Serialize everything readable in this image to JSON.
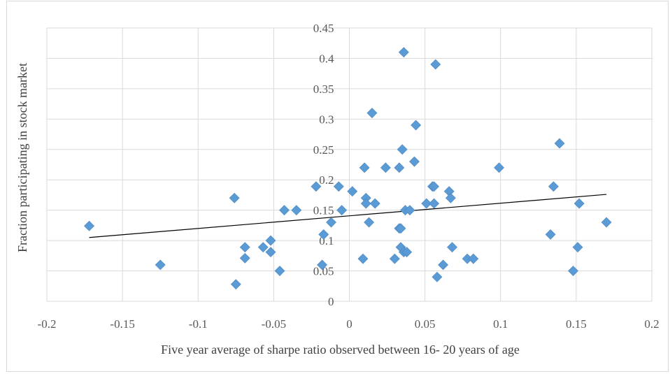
{
  "chart_data": {
    "type": "scatter",
    "title": "",
    "xlabel": "Five year average of sharpe ratio observed between 16- 20 years of age",
    "ylabel": "Fraction participating in stock market",
    "xlim": [
      -0.2,
      0.2
    ],
    "ylim": [
      0,
      0.45
    ],
    "x_ticks": [
      "-0.2",
      "-0.15",
      "-0.1",
      "-0.05",
      "0",
      "0.05",
      "0.1",
      "0.15",
      "0.2"
    ],
    "y_ticks": [
      "0",
      "0.05",
      "0.1",
      "0.15",
      "0.2",
      "0.25",
      "0.3",
      "0.35",
      "0.4",
      "0.45"
    ],
    "grid": "vertical and horizontal major gridlines",
    "marker_color": "#5B9BD5",
    "trendline_color": "#000000",
    "series": [
      {
        "marker": "diamond",
        "points": [
          [
            -0.172,
            0.124
          ],
          [
            -0.125,
            0.06
          ],
          [
            -0.076,
            0.17
          ],
          [
            -0.075,
            0.028
          ],
          [
            -0.069,
            0.089
          ],
          [
            -0.069,
            0.071
          ],
          [
            -0.057,
            0.089
          ],
          [
            -0.052,
            0.1
          ],
          [
            -0.052,
            0.081
          ],
          [
            -0.046,
            0.05
          ],
          [
            -0.043,
            0.15
          ],
          [
            -0.035,
            0.15
          ],
          [
            -0.022,
            0.189
          ],
          [
            -0.018,
            0.06
          ],
          [
            -0.017,
            0.11
          ],
          [
            -0.012,
            0.13
          ],
          [
            -0.007,
            0.189
          ],
          [
            -0.005,
            0.15
          ],
          [
            0.002,
            0.181
          ],
          [
            0.009,
            0.07
          ],
          [
            0.01,
            0.22
          ],
          [
            0.011,
            0.17
          ],
          [
            0.011,
            0.161
          ],
          [
            0.013,
            0.13
          ],
          [
            0.015,
            0.31
          ],
          [
            0.017,
            0.161
          ],
          [
            0.024,
            0.22
          ],
          [
            0.03,
            0.07
          ],
          [
            0.033,
            0.22
          ],
          [
            0.033,
            0.12
          ],
          [
            0.034,
            0.12
          ],
          [
            0.034,
            0.089
          ],
          [
            0.035,
            0.25
          ],
          [
            0.036,
            0.41
          ],
          [
            0.036,
            0.081
          ],
          [
            0.037,
            0.15
          ],
          [
            0.038,
            0.081
          ],
          [
            0.04,
            0.15
          ],
          [
            0.043,
            0.23
          ],
          [
            0.044,
            0.29
          ],
          [
            0.051,
            0.161
          ],
          [
            0.055,
            0.189
          ],
          [
            0.056,
            0.189
          ],
          [
            0.056,
            0.161
          ],
          [
            0.057,
            0.39
          ],
          [
            0.058,
            0.04
          ],
          [
            0.062,
            0.06
          ],
          [
            0.066,
            0.181
          ],
          [
            0.067,
            0.17
          ],
          [
            0.068,
            0.089
          ],
          [
            0.078,
            0.07
          ],
          [
            0.082,
            0.07
          ],
          [
            0.099,
            0.22
          ],
          [
            0.133,
            0.11
          ],
          [
            0.135,
            0.189
          ],
          [
            0.139,
            0.26
          ],
          [
            0.148,
            0.05
          ],
          [
            0.151,
            0.089
          ],
          [
            0.152,
            0.161
          ],
          [
            0.17,
            0.13
          ]
        ]
      }
    ],
    "trendline": {
      "type": "linear",
      "x": [
        -0.172,
        0.17
      ],
      "y": [
        0.105,
        0.176
      ]
    }
  }
}
